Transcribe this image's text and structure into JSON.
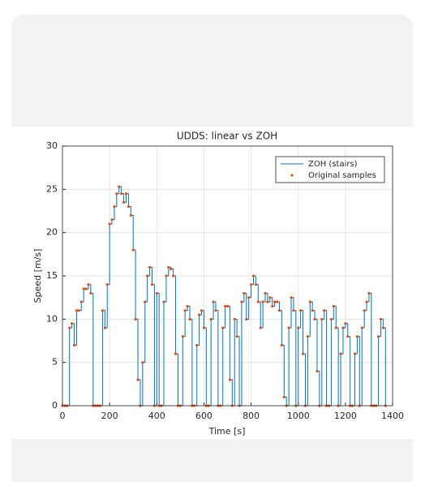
{
  "chart_data": {
    "type": "line",
    "title": "UDDS: linear vs ZOH",
    "x_label": "Time [s]",
    "y_label": "Speed [m/s]",
    "x": [
      0,
      10,
      20,
      30,
      40,
      50,
      60,
      70,
      80,
      90,
      100,
      110,
      120,
      130,
      140,
      150,
      160,
      170,
      180,
      190,
      200,
      210,
      220,
      230,
      240,
      250,
      260,
      270,
      280,
      290,
      300,
      310,
      320,
      330,
      340,
      350,
      360,
      370,
      380,
      390,
      400,
      410,
      420,
      430,
      440,
      450,
      460,
      470,
      480,
      490,
      500,
      510,
      520,
      530,
      540,
      550,
      560,
      570,
      580,
      590,
      600,
      610,
      620,
      630,
      640,
      650,
      660,
      670,
      680,
      690,
      700,
      710,
      720,
      730,
      740,
      750,
      760,
      770,
      780,
      790,
      800,
      810,
      820,
      830,
      840,
      850,
      860,
      870,
      880,
      890,
      900,
      910,
      920,
      930,
      940,
      950,
      960,
      970,
      980,
      990,
      1000,
      1010,
      1020,
      1030,
      1040,
      1050,
      1060,
      1070,
      1080,
      1090,
      1100,
      1110,
      1120,
      1130,
      1140,
      1150,
      1160,
      1170,
      1180,
      1190,
      1200,
      1210,
      1220,
      1230,
      1240,
      1250,
      1260,
      1270,
      1280,
      1290,
      1300,
      1310,
      1320,
      1330,
      1340,
      1350,
      1360,
      1370
    ],
    "series": [
      {
        "name": "ZOH (stairs)",
        "color": "#0072bd",
        "style": "stairs",
        "values": [
          0,
          0,
          0,
          9,
          9.5,
          7,
          11,
          11,
          12,
          13.5,
          13.5,
          14,
          13,
          0,
          0,
          0,
          0,
          11,
          9,
          14,
          21,
          21.5,
          23,
          24.5,
          25.3,
          24.5,
          23.5,
          24.5,
          23,
          22,
          18,
          10,
          3,
          0,
          5,
          12,
          15,
          16,
          14,
          0,
          13,
          0,
          0,
          12,
          15,
          16,
          15.8,
          15,
          6,
          0,
          0,
          8,
          11,
          11.5,
          10,
          0,
          0,
          7,
          10.5,
          11,
          9,
          0,
          0,
          10,
          12,
          11,
          0,
          0,
          9,
          11.5,
          11.5,
          3,
          0,
          10,
          8,
          0,
          12,
          13,
          10,
          12.5,
          14,
          15,
          14,
          12,
          9,
          12,
          13,
          12,
          12.5,
          11.5,
          12,
          12,
          11,
          7,
          1,
          0,
          9,
          12.5,
          11,
          0,
          9,
          11,
          6,
          0,
          8,
          12,
          11,
          10,
          4,
          0,
          10,
          11,
          0,
          0,
          10,
          11.5,
          9,
          0,
          6,
          9,
          9.5,
          8,
          0,
          0,
          6,
          8,
          0,
          9,
          11,
          12,
          13,
          0,
          0,
          0,
          8,
          10,
          9,
          0
        ]
      },
      {
        "name": "Original samples",
        "color": "#d95319",
        "style": "markers",
        "values": [
          0,
          0,
          0,
          9,
          9.5,
          7,
          11,
          11,
          12,
          13.5,
          13.5,
          14,
          13,
          0,
          0,
          0,
          0,
          11,
          9,
          14,
          21,
          21.5,
          23,
          24.5,
          25.3,
          24.5,
          23.5,
          24.5,
          23,
          22,
          18,
          10,
          3,
          0,
          5,
          12,
          15,
          16,
          14,
          0,
          13,
          0,
          0,
          12,
          15,
          16,
          15.8,
          15,
          6,
          0,
          0,
          8,
          11,
          11.5,
          10,
          0,
          0,
          7,
          10.5,
          11,
          9,
          0,
          0,
          10,
          12,
          11,
          0,
          0,
          9,
          11.5,
          11.5,
          3,
          0,
          10,
          8,
          0,
          12,
          13,
          10,
          12.5,
          14,
          15,
          14,
          12,
          9,
          12,
          13,
          12,
          12.5,
          11.5,
          12,
          12,
          11,
          7,
          1,
          0,
          9,
          12.5,
          11,
          0,
          9,
          11,
          6,
          0,
          8,
          12,
          11,
          10,
          4,
          0,
          10,
          11,
          0,
          0,
          10,
          11.5,
          9,
          0,
          6,
          9,
          9.5,
          8,
          0,
          0,
          6,
          8,
          0,
          9,
          11,
          12,
          13,
          0,
          0,
          0,
          8,
          10,
          9,
          0
        ]
      }
    ],
    "xlim": [
      0,
      1400
    ],
    "xticks": [
      0,
      200,
      400,
      600,
      800,
      1000,
      1200,
      1400
    ],
    "ylim": [
      0,
      30
    ],
    "yticks": [
      0,
      5,
      10,
      15,
      20,
      25,
      30
    ],
    "grid": true,
    "legend": "top-right"
  }
}
